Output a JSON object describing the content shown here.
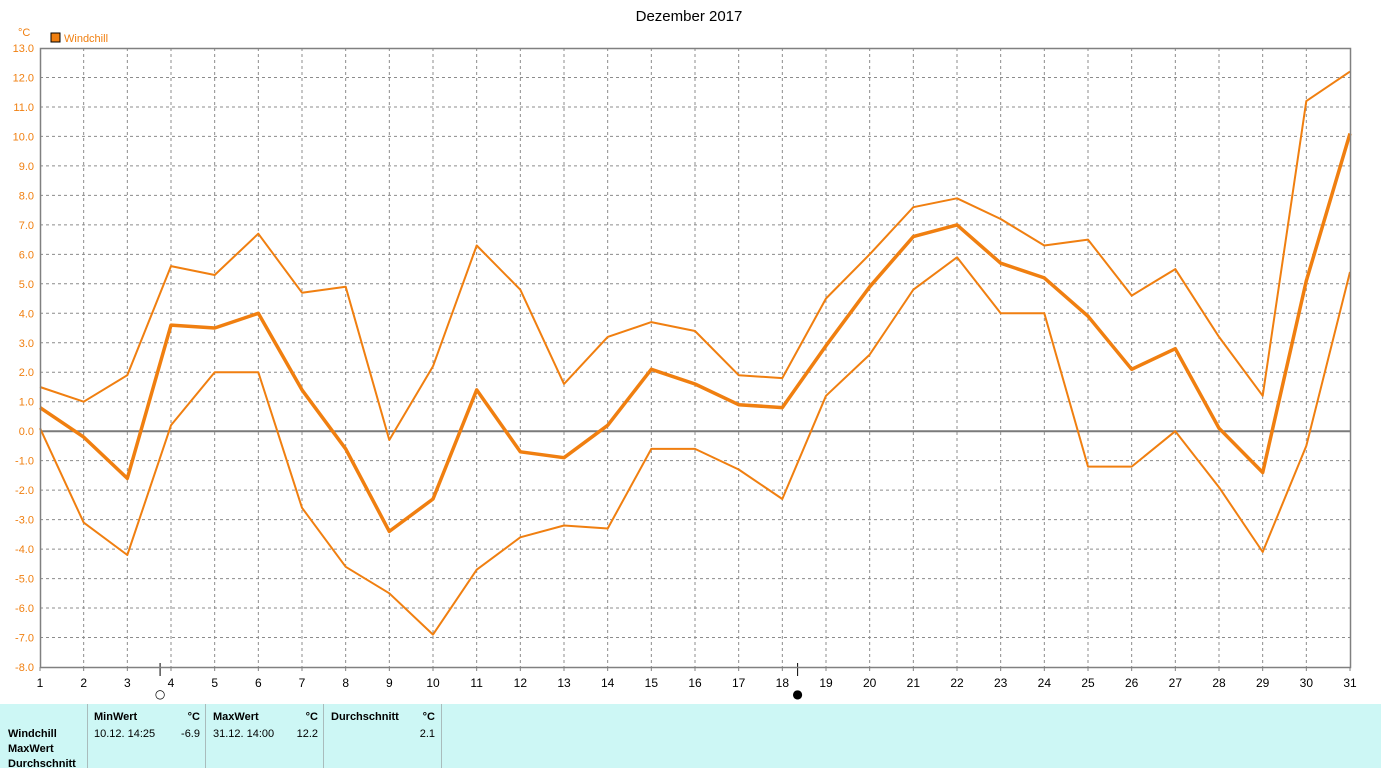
{
  "chart_data": {
    "type": "line",
    "title": "Dezember 2017",
    "unit_label": "°C",
    "legend": {
      "label": "Windchill",
      "color": "#f07f10",
      "placement": "top-left"
    },
    "x": [
      1,
      2,
      3,
      4,
      5,
      6,
      7,
      8,
      9,
      10,
      11,
      12,
      13,
      14,
      15,
      16,
      17,
      18,
      19,
      20,
      21,
      22,
      23,
      24,
      25,
      26,
      27,
      28,
      29,
      30,
      31
    ],
    "x_tick_labels": [
      "1",
      "2",
      "3",
      "4",
      "5",
      "6",
      "7",
      "8",
      "9",
      "10",
      "11",
      "12",
      "13",
      "14",
      "15",
      "16",
      "17",
      "18",
      "19",
      "20",
      "21",
      "22",
      "23",
      "24",
      "25",
      "26",
      "27",
      "28",
      "29",
      "30",
      "31"
    ],
    "y_tick_labels": [
      "13.0",
      "12.0",
      "11.0",
      "10.0",
      "9.0",
      "8.0",
      "7.0",
      "6.0",
      "5.0",
      "4.0",
      "3.0",
      "2.0",
      "1.0",
      "0.0",
      "-1.0",
      "-2.0",
      "-3.0",
      "-4.0",
      "-5.0",
      "-6.0",
      "-7.0",
      "-8.0"
    ],
    "ylim": [
      -8,
      13
    ],
    "grid": true,
    "series": [
      {
        "role": "max",
        "color": "#f07f10",
        "width": 2,
        "values": [
          1.5,
          1.0,
          1.9,
          5.6,
          5.3,
          6.7,
          4.7,
          4.9,
          -0.3,
          2.2,
          6.3,
          4.8,
          1.6,
          3.2,
          3.7,
          3.4,
          1.9,
          1.8,
          4.5,
          6.0,
          7.6,
          7.9,
          7.2,
          6.3,
          6.5,
          4.6,
          5.5,
          3.2,
          1.2,
          11.2,
          12.2
        ]
      },
      {
        "role": "avg",
        "color": "#f07f10",
        "width": 3.5,
        "values": [
          0.8,
          -0.2,
          -1.6,
          3.6,
          3.5,
          4.0,
          1.4,
          -0.6,
          -3.4,
          -2.3,
          1.4,
          -0.7,
          -0.9,
          0.2,
          2.1,
          1.6,
          0.9,
          0.8,
          2.9,
          4.9,
          6.6,
          7.0,
          5.7,
          5.2,
          3.9,
          2.1,
          2.8,
          0.1,
          -1.4,
          5.1,
          10.1
        ]
      },
      {
        "role": "min",
        "color": "#f07f10",
        "width": 2,
        "values": [
          0.1,
          -3.1,
          -4.2,
          0.2,
          2.0,
          2.0,
          -2.6,
          -4.6,
          -5.5,
          -6.9,
          -4.7,
          -3.6,
          -3.2,
          -3.3,
          -0.6,
          -0.6,
          -1.3,
          -2.3,
          1.2,
          2.6,
          4.8,
          5.9,
          4.0,
          4.0,
          -1.2,
          -1.2,
          0.0,
          -1.9,
          -4.1,
          -0.5,
          5.4
        ]
      }
    ],
    "moon_phases": [
      {
        "day": 3.75,
        "symbol": "○",
        "phase": "full"
      },
      {
        "day": 18.35,
        "symbol": "●",
        "phase": "new"
      }
    ],
    "colors": {
      "axis_text": "#f07f10",
      "grid": "#8c8c8c",
      "zero_line": "#7a7a7a"
    }
  },
  "stats": {
    "row_labels": [
      "Windchill",
      "MaxWert",
      "Durchschnitt"
    ],
    "columns": [
      {
        "header": "MinWert",
        "unit": "°C",
        "datetime": "10.12.  14:25",
        "value": "-6.9"
      },
      {
        "header": "MaxWert",
        "unit": "°C",
        "datetime": "31.12.  14:00",
        "value": "12.2"
      },
      {
        "header": "Durchschnitt",
        "unit": "°C",
        "datetime": "",
        "value": "2.1"
      }
    ],
    "background": "#cdf7f5"
  }
}
